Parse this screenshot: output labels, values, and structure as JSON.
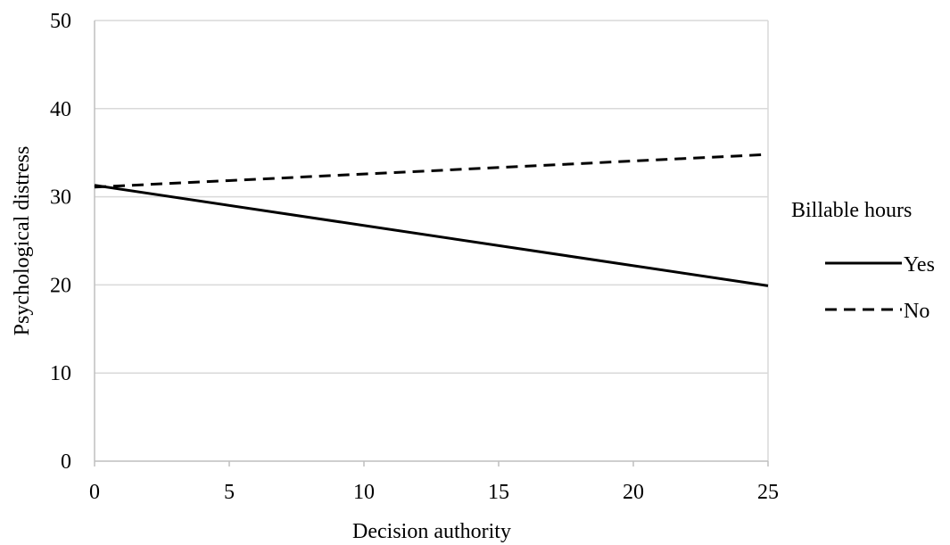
{
  "chart_data": {
    "type": "line",
    "title": "",
    "xlabel": "Decision authority",
    "ylabel": "Psychological distress",
    "xlim": [
      0,
      25
    ],
    "ylim": [
      0,
      50
    ],
    "xticks": [
      0,
      5,
      10,
      15,
      20,
      25
    ],
    "yticks": [
      0,
      10,
      20,
      30,
      40,
      50
    ],
    "grid": "horizontal",
    "legend": {
      "title": "Billable hours",
      "placement": "right"
    },
    "series": [
      {
        "name": "Yes",
        "x": [
          0,
          25
        ],
        "y": [
          31.3,
          19.9
        ],
        "line_style": "solid",
        "color": "#000000"
      },
      {
        "name": "No",
        "x": [
          0,
          25
        ],
        "y": [
          31.1,
          34.8
        ],
        "line_style": "dashed",
        "color": "#000000"
      }
    ]
  },
  "colors": {
    "grid": "#d9d9d9",
    "axis": "#bfbfbf",
    "ink": "#000000"
  }
}
